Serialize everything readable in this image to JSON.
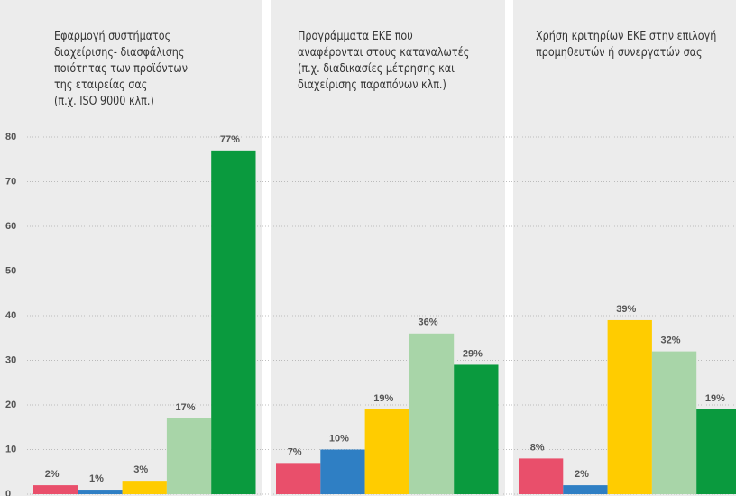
{
  "chart_data": {
    "type": "bar",
    "categories": [
      "Εφαρμογή συστήματος\nδιαχείρισης- διασφάλισης\nποιότητας των προϊόντων\nτης εταιρείας σας\n (π.χ. ISO 9000 κλπ.)",
      "Προγράμματα ΕΚΕ που\nαναφέρονται στους καταναλωτές\n(π.χ. διαδικασίες μέτρησης και\nδιαχείρισης παραπόνων κλπ.)",
      "Χρήση κριτηρίων ΕΚΕ στην επιλογή\nπρομηθευτών ή συνεργατών σας"
    ],
    "series": [
      {
        "color": "#e94f6b",
        "values": [
          2,
          7,
          8
        ],
        "value_labels": [
          "2%",
          "7%",
          "8%"
        ]
      },
      {
        "color": "#2f7fc4",
        "values": [
          1,
          10,
          2
        ],
        "value_labels": [
          "1%",
          "10%",
          "2%"
        ]
      },
      {
        "color": "#ffcc00",
        "values": [
          3,
          19,
          39
        ],
        "value_labels": [
          "3%",
          "19%",
          "39%"
        ]
      },
      {
        "color": "#a8d5a8",
        "values": [
          17,
          36,
          32
        ],
        "value_labels": [
          "17%",
          "36%",
          "32%"
        ]
      },
      {
        "color": "#0a9a3e",
        "values": [
          77,
          29,
          19
        ],
        "value_labels": [
          "77%",
          "29%",
          "19%"
        ]
      }
    ],
    "ylim": [
      0,
      80
    ],
    "yticks": [
      0,
      10,
      20,
      30,
      40,
      50,
      60,
      70,
      80
    ],
    "grid": true
  }
}
